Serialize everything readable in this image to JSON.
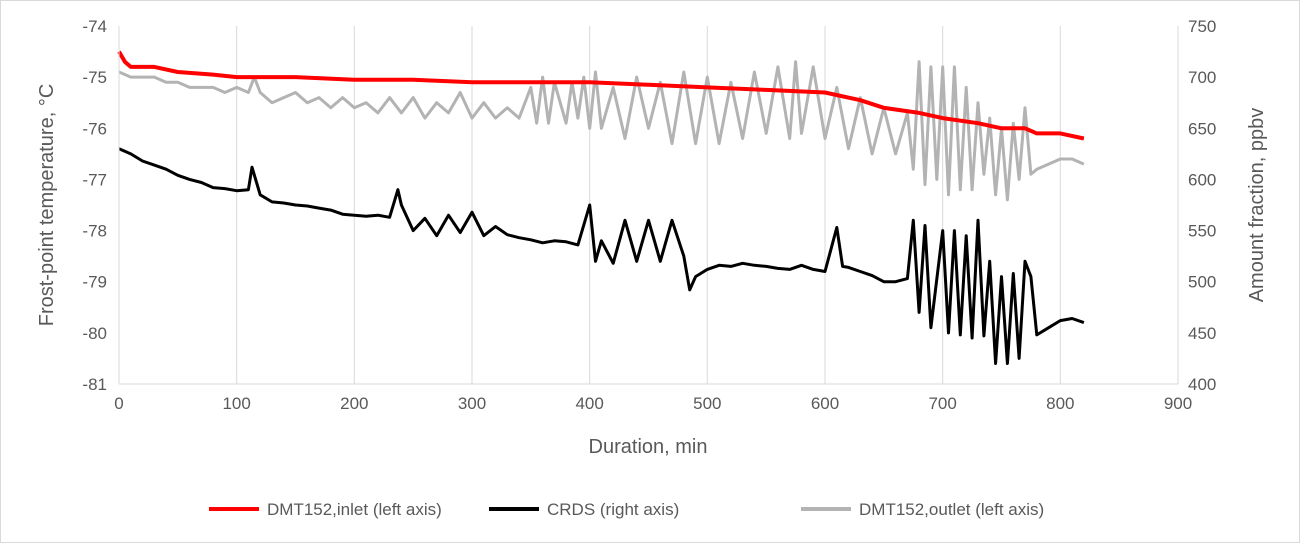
{
  "chart_data": {
    "type": "line",
    "title": "",
    "xlabel": "Duration, min",
    "ylabel_left": "Frost-point temperature, °C",
    "ylabel_right": "Amount fraction, ppbv",
    "xlim": [
      0,
      900
    ],
    "ylim_left": [
      -81,
      -74
    ],
    "ylim_right": [
      400,
      750
    ],
    "x_ticks": [
      "0",
      "100",
      "200",
      "300",
      "400",
      "500",
      "600",
      "700",
      "800",
      "900"
    ],
    "y_left_ticks": [
      "-74",
      "-75",
      "-76",
      "-77",
      "-78",
      "-79",
      "-80",
      "-81"
    ],
    "y_right_ticks": [
      "750",
      "700",
      "650",
      "600",
      "550",
      "500",
      "450",
      "400"
    ],
    "grid": "vertical",
    "legend_placement": "bottom",
    "colors": {
      "inlet": "#ff0000",
      "crds": "#000000",
      "outlet": "#b3b3b3",
      "grid": "#d9d9d9"
    },
    "series": [
      {
        "name": "DMT152,inlet (left axis)",
        "axis": "left",
        "color": "#ff0000",
        "x": [
          0,
          5,
          10,
          30,
          50,
          80,
          100,
          150,
          200,
          250,
          300,
          350,
          400,
          450,
          500,
          550,
          600,
          630,
          650,
          680,
          700,
          730,
          750,
          770,
          780,
          800,
          820
        ],
        "y": [
          -74.5,
          -74.7,
          -74.8,
          -74.8,
          -74.9,
          -74.95,
          -75.0,
          -75.0,
          -75.05,
          -75.05,
          -75.1,
          -75.1,
          -75.1,
          -75.15,
          -75.2,
          -75.25,
          -75.3,
          -75.45,
          -75.6,
          -75.7,
          -75.8,
          -75.9,
          -76.0,
          -76.0,
          -76.1,
          -76.1,
          -76.2
        ]
      },
      {
        "name": "CRDS (right axis)",
        "axis": "right",
        "color": "#000000",
        "x": [
          0,
          10,
          20,
          30,
          40,
          50,
          60,
          70,
          80,
          90,
          100,
          110,
          113,
          120,
          130,
          140,
          150,
          160,
          170,
          180,
          190,
          200,
          210,
          220,
          230,
          237,
          240,
          250,
          260,
          270,
          280,
          290,
          300,
          310,
          320,
          330,
          340,
          350,
          360,
          370,
          380,
          390,
          400,
          405,
          410,
          420,
          430,
          440,
          450,
          460,
          470,
          480,
          485,
          490,
          500,
          510,
          520,
          530,
          540,
          550,
          560,
          570,
          580,
          590,
          600,
          610,
          615,
          620,
          630,
          640,
          650,
          660,
          670,
          675,
          680,
          685,
          690,
          700,
          705,
          710,
          715,
          720,
          725,
          730,
          735,
          740,
          745,
          750,
          755,
          760,
          765,
          770,
          775,
          780,
          790,
          800,
          810,
          820
        ],
        "y": [
          630,
          625,
          618,
          614,
          610,
          604,
          600,
          597,
          592,
          591,
          589,
          590,
          612,
          585,
          578,
          577,
          575,
          574,
          572,
          570,
          566,
          565,
          564,
          565,
          563,
          590,
          575,
          550,
          562,
          545,
          565,
          548,
          568,
          545,
          554,
          546,
          543,
          541,
          538,
          540,
          539,
          536,
          575,
          520,
          540,
          518,
          560,
          520,
          560,
          520,
          560,
          525,
          492,
          505,
          512,
          516,
          515,
          518,
          516,
          515,
          513,
          512,
          516,
          512,
          510,
          553,
          515,
          514,
          510,
          506,
          500,
          500,
          503,
          560,
          470,
          555,
          455,
          550,
          450,
          550,
          448,
          545,
          445,
          560,
          447,
          520,
          420,
          505,
          420,
          508,
          425,
          520,
          505,
          448,
          455,
          462,
          464,
          460
        ]
      },
      {
        "name": "DMT152,outlet (left axis)",
        "axis": "left",
        "color": "#b3b3b3",
        "x": [
          0,
          10,
          20,
          30,
          40,
          50,
          60,
          70,
          80,
          90,
          100,
          110,
          115,
          120,
          130,
          140,
          150,
          160,
          170,
          180,
          190,
          200,
          210,
          220,
          230,
          240,
          250,
          260,
          270,
          280,
          290,
          300,
          310,
          320,
          330,
          340,
          350,
          355,
          360,
          365,
          370,
          380,
          385,
          390,
          395,
          400,
          405,
          410,
          420,
          430,
          440,
          450,
          460,
          470,
          480,
          490,
          500,
          510,
          520,
          530,
          540,
          550,
          560,
          570,
          575,
          580,
          590,
          600,
          610,
          620,
          630,
          640,
          650,
          660,
          670,
          675,
          680,
          685,
          690,
          695,
          700,
          705,
          710,
          715,
          720,
          725,
          730,
          735,
          740,
          745,
          750,
          755,
          760,
          765,
          770,
          775,
          780,
          790,
          800,
          810,
          820
        ],
        "y": [
          -74.9,
          -75.0,
          -75.0,
          -75.0,
          -75.1,
          -75.1,
          -75.2,
          -75.2,
          -75.2,
          -75.3,
          -75.2,
          -75.3,
          -75.0,
          -75.3,
          -75.5,
          -75.4,
          -75.3,
          -75.5,
          -75.4,
          -75.6,
          -75.4,
          -75.6,
          -75.5,
          -75.7,
          -75.4,
          -75.7,
          -75.4,
          -75.8,
          -75.5,
          -75.7,
          -75.3,
          -75.8,
          -75.5,
          -75.8,
          -75.6,
          -75.8,
          -75.2,
          -75.9,
          -75.0,
          -75.9,
          -75.1,
          -75.9,
          -75.1,
          -75.8,
          -75.0,
          -76.0,
          -74.9,
          -76.0,
          -75.2,
          -76.2,
          -75.0,
          -76.0,
          -75.1,
          -76.3,
          -74.9,
          -76.3,
          -75.0,
          -76.3,
          -75.1,
          -76.2,
          -74.9,
          -76.1,
          -74.8,
          -76.2,
          -74.7,
          -76.1,
          -74.8,
          -76.2,
          -75.2,
          -76.4,
          -75.4,
          -76.5,
          -75.6,
          -76.5,
          -75.7,
          -76.8,
          -74.7,
          -77.1,
          -74.8,
          -77.0,
          -74.8,
          -77.3,
          -74.8,
          -77.2,
          -75.2,
          -77.2,
          -75.5,
          -76.9,
          -75.8,
          -77.3,
          -76.0,
          -77.4,
          -75.9,
          -77.0,
          -75.6,
          -76.9,
          -76.8,
          -76.7,
          -76.6,
          -76.6,
          -76.7
        ]
      }
    ]
  }
}
